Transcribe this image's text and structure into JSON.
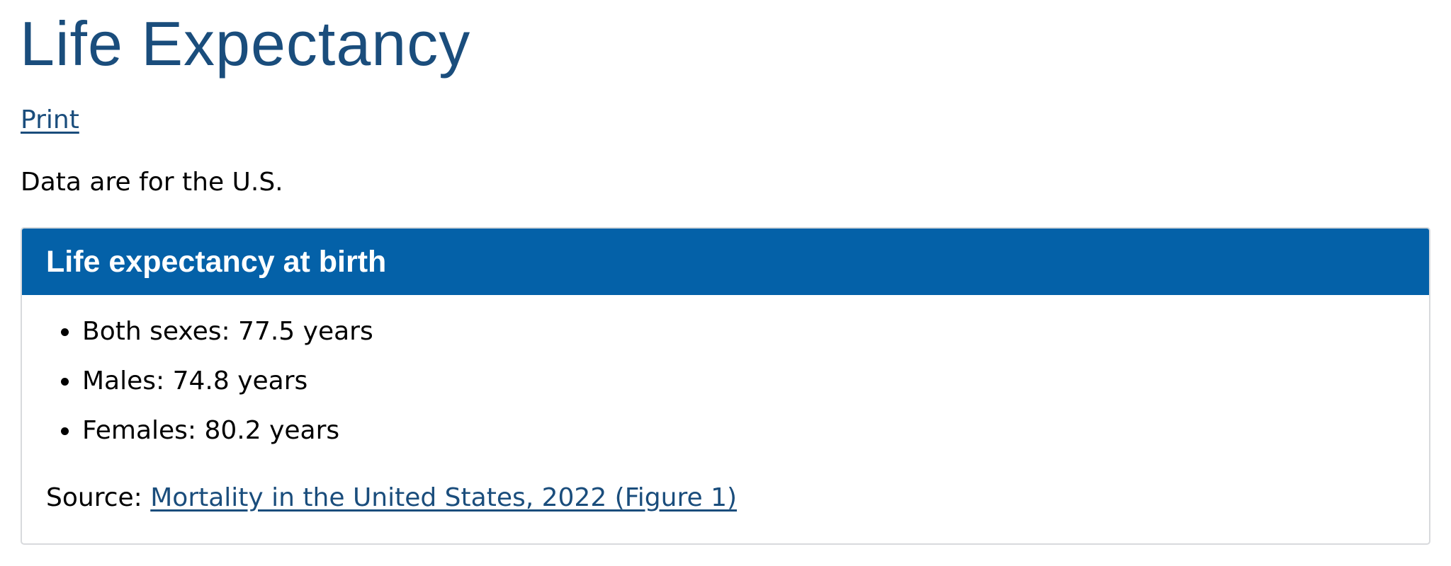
{
  "page": {
    "title": "Life Expectancy",
    "print_label": "Print",
    "intro": "Data are for the U.S."
  },
  "card": {
    "title": "Life expectancy at birth",
    "items": [
      {
        "label": "Both sexes: 77.5 years"
      },
      {
        "label": "Males: 74.8 years"
      },
      {
        "label": "Females: 80.2 years"
      }
    ],
    "source_prefix": "Source:",
    "source_link": "Mortality in the United States, 2022 (Figure 1)"
  },
  "colors": {
    "title": "#1a4d7c",
    "link": "#1a4d7c",
    "card_header_bg": "#0461a8",
    "card_border": "#d8dadd"
  }
}
